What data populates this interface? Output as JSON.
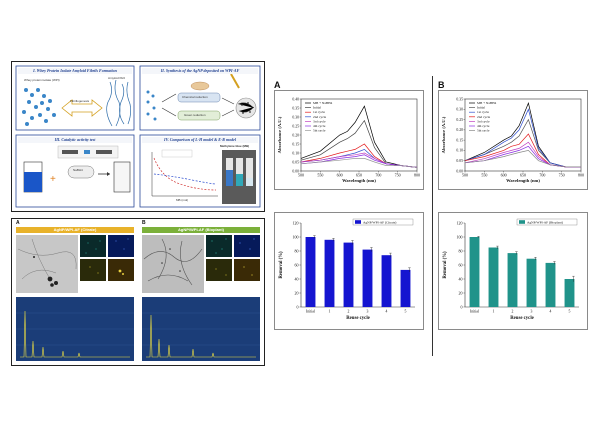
{
  "schematic": {
    "box1_title": "I. Whey Protein Isolate Amyloid Fibrils Formation",
    "box1_protein_label": "Whey protein isolate (WPI)",
    "box1_fibrils_label": "Fibrillogenesis",
    "box1_result_label": "Amyloid fibril",
    "box2_title": "II. Synthesis of the AgNP deposited on WPI-AF",
    "box2_chemical_label": "Chemical reduction",
    "box2_green_label": "Green reduction",
    "box3_title": "III. Catalytic activity test",
    "box3_reagent_label": "NaBH4",
    "box4_title": "IV. Comparison of L-H model & E-R model",
    "box4_dye_label": "Methylene blue (MB)",
    "box4_xlabel": "MB (mol)"
  },
  "figures": {
    "A_label": "A",
    "B_label": "B",
    "A_bar": "AgNP/WPI-AF (Citrate)",
    "B_bar": "AgNP/WPI-AF (Bioplant)"
  },
  "chart_data": [
    {
      "type": "line",
      "panel": "A",
      "xlabel": "Wavelength (nm)",
      "ylabel": "Absorbance (A.U.)",
      "xlim": [
        500,
        800
      ],
      "ylim": [
        0,
        0.4
      ],
      "x_ticks": [
        "500",
        "550",
        "600",
        "650",
        "700",
        "750",
        "800"
      ],
      "y_ticks": [
        "0.00",
        "0.05",
        "0.10",
        "0.15",
        "0.20",
        "0.25",
        "0.30",
        "0.35",
        "0.40"
      ],
      "x": [
        500,
        550,
        600,
        620,
        640,
        664,
        690,
        720,
        760,
        800
      ],
      "series": [
        {
          "name": "MB + NaBH4",
          "color": "#000000",
          "values": [
            0.07,
            0.11,
            0.2,
            0.22,
            0.27,
            0.36,
            0.16,
            0.05,
            0.03,
            0.02
          ]
        },
        {
          "name": "Initial",
          "color": "#444444",
          "values": [
            0.06,
            0.09,
            0.16,
            0.18,
            0.21,
            0.28,
            0.13,
            0.04,
            0.03,
            0.02
          ]
        },
        {
          "name": "1st cycle",
          "color": "#e31a1c",
          "values": [
            0.05,
            0.07,
            0.1,
            0.11,
            0.12,
            0.15,
            0.08,
            0.04,
            0.03,
            0.02
          ]
        },
        {
          "name": "2nd cycle",
          "color": "#3050d0",
          "values": [
            0.05,
            0.06,
            0.08,
            0.09,
            0.1,
            0.12,
            0.07,
            0.04,
            0.03,
            0.02
          ]
        },
        {
          "name": "3rd cycle",
          "color": "#c040c0",
          "values": [
            0.05,
            0.06,
            0.08,
            0.085,
            0.09,
            0.1,
            0.07,
            0.04,
            0.03,
            0.02
          ]
        },
        {
          "name": "4th cycle",
          "color": "#8a2be2",
          "values": [
            0.04,
            0.05,
            0.07,
            0.075,
            0.08,
            0.09,
            0.06,
            0.04,
            0.03,
            0.02
          ]
        },
        {
          "name": "5th cycle",
          "color": "#999999",
          "values": [
            0.04,
            0.05,
            0.06,
            0.065,
            0.07,
            0.07,
            0.05,
            0.03,
            0.03,
            0.02
          ]
        }
      ]
    },
    {
      "type": "line",
      "panel": "B",
      "xlabel": "Wavelength (nm)",
      "ylabel": "Absorbance (A.U.)",
      "xlim": [
        500,
        800
      ],
      "ylim": [
        0,
        0.35
      ],
      "x_ticks": [
        "500",
        "550",
        "600",
        "650",
        "700",
        "750",
        "800"
      ],
      "y_ticks": [
        "0.00",
        "0.05",
        "0.10",
        "0.15",
        "0.20",
        "0.25",
        "0.30",
        "0.35"
      ],
      "x": [
        500,
        550,
        600,
        620,
        640,
        664,
        690,
        720,
        760,
        800
      ],
      "series": [
        {
          "name": "MB + NaBH4",
          "color": "#000000",
          "values": [
            0.05,
            0.09,
            0.15,
            0.17,
            0.22,
            0.33,
            0.12,
            0.04,
            0.02,
            0.02
          ]
        },
        {
          "name": "Initial",
          "color": "#555555",
          "values": [
            0.05,
            0.08,
            0.12,
            0.14,
            0.17,
            0.25,
            0.1,
            0.04,
            0.02,
            0.02
          ]
        },
        {
          "name": "1st cycle",
          "color": "#3050d0",
          "values": [
            0.05,
            0.08,
            0.14,
            0.16,
            0.2,
            0.3,
            0.11,
            0.04,
            0.02,
            0.02
          ]
        },
        {
          "name": "2nd cycle",
          "color": "#e31a1c",
          "values": [
            0.05,
            0.07,
            0.1,
            0.12,
            0.13,
            0.18,
            0.08,
            0.03,
            0.02,
            0.02
          ]
        },
        {
          "name": "3rd cycle",
          "color": "#c040c0",
          "values": [
            0.04,
            0.06,
            0.09,
            0.1,
            0.11,
            0.14,
            0.07,
            0.03,
            0.02,
            0.02
          ]
        },
        {
          "name": "4th cycle",
          "color": "#8a2be2",
          "values": [
            0.04,
            0.05,
            0.08,
            0.09,
            0.1,
            0.12,
            0.06,
            0.03,
            0.02,
            0.02
          ]
        },
        {
          "name": "5th cycle",
          "color": "#888888",
          "values": [
            0.04,
            0.05,
            0.07,
            0.08,
            0.09,
            0.1,
            0.05,
            0.03,
            0.02,
            0.02
          ]
        }
      ]
    },
    {
      "type": "bar",
      "panel": "A",
      "xlabel": "Reuse cycle",
      "ylabel": "Removal (%)",
      "ylim": [
        0,
        120
      ],
      "y_ticks": [
        "0",
        "20",
        "40",
        "60",
        "80",
        "100",
        "120"
      ],
      "categories": [
        "Initial",
        "1",
        "2",
        "3",
        "4",
        "5"
      ],
      "series": [
        {
          "name": "AgNP/WPI-AF (Citrate)",
          "color": "#1515d0",
          "values": [
            100,
            96,
            92,
            82,
            74,
            53
          ]
        }
      ],
      "errors": [
        2,
        2,
        3,
        3,
        3,
        3
      ]
    },
    {
      "type": "bar",
      "panel": "B",
      "xlabel": "Reuse cycle",
      "ylabel": "Removal (%)",
      "ylim": [
        0,
        120
      ],
      "y_ticks": [
        "0",
        "20",
        "40",
        "60",
        "80",
        "100",
        "120"
      ],
      "categories": [
        "Initial",
        "1",
        "2",
        "3",
        "4",
        "5"
      ],
      "series": [
        {
          "name": "AgNP/WPI-AF (Bioplant)",
          "color": "#20938a",
          "values": [
            100,
            85,
            77,
            69,
            63,
            40
          ]
        }
      ],
      "errors": [
        1,
        2,
        2,
        2,
        2,
        4
      ]
    }
  ],
  "colors": {
    "bar_a_header": "#e8b22a",
    "bar_b_header": "#7bb03a",
    "eds_background": "#1b3d78"
  }
}
